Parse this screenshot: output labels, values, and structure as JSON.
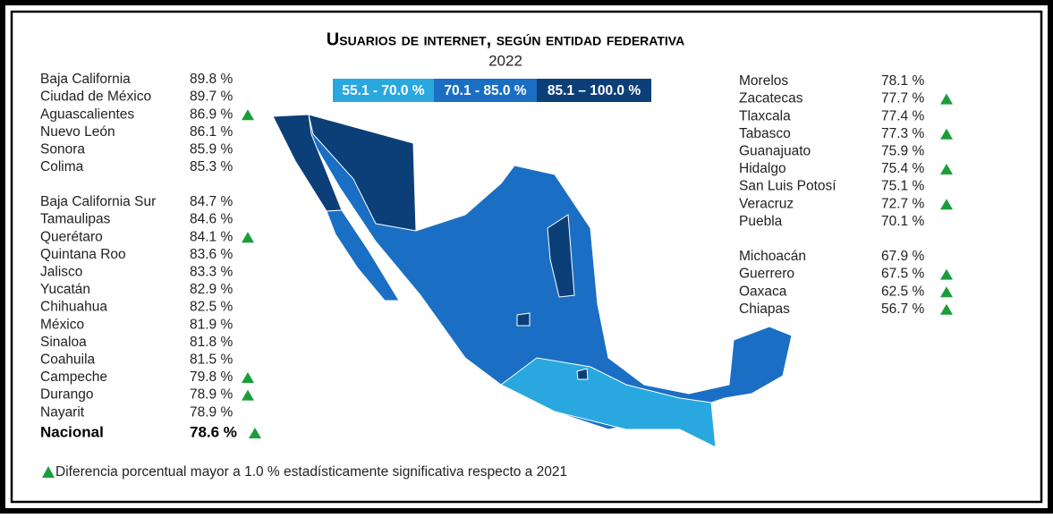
{
  "header": {
    "title": "Usuarios de internet, según entidad federativa",
    "year": "2022"
  },
  "legend": [
    {
      "label": "55.1 - 70.0 %",
      "color": "#29a8e0"
    },
    {
      "label": "70.1 - 85.0 %",
      "color": "#1a6fc4"
    },
    {
      "label": "85.1 – 100.0 %",
      "color": "#0c3f78"
    }
  ],
  "left_groups": [
    [
      {
        "name": "Baja California",
        "value": "89.8 %",
        "significant": false
      },
      {
        "name": "Ciudad de México",
        "value": "89.7 %",
        "significant": false
      },
      {
        "name": "Aguascalientes",
        "value": "86.9 %",
        "significant": true
      },
      {
        "name": "Nuevo León",
        "value": "86.1 %",
        "significant": false
      },
      {
        "name": "Sonora",
        "value": "85.9 %",
        "significant": false
      },
      {
        "name": "Colima",
        "value": "85.3 %",
        "significant": false
      }
    ],
    [
      {
        "name": "Baja California Sur",
        "value": "84.7 %",
        "significant": false
      },
      {
        "name": "Tamaulipas",
        "value": "84.6 %",
        "significant": false
      },
      {
        "name": "Querétaro",
        "value": "84.1 %",
        "significant": true
      },
      {
        "name": "Quintana Roo",
        "value": "83.6 %",
        "significant": false
      },
      {
        "name": "Jalisco",
        "value": "83.3 %",
        "significant": false
      },
      {
        "name": "Yucatán",
        "value": "82.9 %",
        "significant": false
      },
      {
        "name": "Chihuahua",
        "value": "82.5 %",
        "significant": false
      },
      {
        "name": "México",
        "value": "81.9 %",
        "significant": false
      },
      {
        "name": "Sinaloa",
        "value": "81.8 %",
        "significant": false
      },
      {
        "name": "Coahuila",
        "value": "81.5 %",
        "significant": false
      },
      {
        "name": "Campeche",
        "value": "79.8 %",
        "significant": true
      },
      {
        "name": "Durango",
        "value": "78.9 %",
        "significant": true
      },
      {
        "name": "Nayarit",
        "value": "78.9 %",
        "significant": false
      }
    ]
  ],
  "national": {
    "name": "Nacional",
    "value": "78.6 %",
    "significant": true
  },
  "right_groups": [
    [
      {
        "name": "Morelos",
        "value": "78.1 %",
        "significant": false
      },
      {
        "name": "Zacatecas",
        "value": "77.7 %",
        "significant": true
      },
      {
        "name": "Tlaxcala",
        "value": "77.4 %",
        "significant": false
      },
      {
        "name": "Tabasco",
        "value": "77.3 %",
        "significant": true
      },
      {
        "name": "Guanajuato",
        "value": "75.9 %",
        "significant": false
      },
      {
        "name": "Hidalgo",
        "value": "75.4 %",
        "significant": true
      },
      {
        "name": "San Luis Potosí",
        "value": "75.1 %",
        "significant": false
      },
      {
        "name": "Veracruz",
        "value": "72.7 %",
        "significant": true
      },
      {
        "name": "Puebla",
        "value": "70.1 %",
        "significant": false
      }
    ],
    [
      {
        "name": "Michoacán",
        "value": "67.9 %",
        "significant": false
      },
      {
        "name": "Guerrero",
        "value": "67.5 %",
        "significant": true
      },
      {
        "name": "Oaxaca",
        "value": "62.5 %",
        "significant": true
      },
      {
        "name": "Chiapas",
        "value": "56.7 %",
        "significant": true
      }
    ]
  ],
  "footnote": "Diferencia porcentual mayor a 1.0 % estadísticamente significativa respecto a 2021"
}
